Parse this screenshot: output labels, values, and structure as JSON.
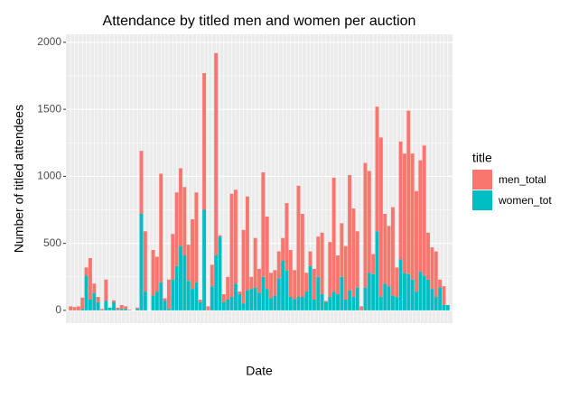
{
  "chart_data": {
    "type": "bar",
    "stacked": true,
    "title": "Attendance by titled men and women per auction",
    "x_label": "Date",
    "y_label": "Number of titled attendees",
    "legend_title": "title",
    "legend_position": "right",
    "categories": [
      null,
      null,
      null,
      null,
      null,
      null,
      null,
      null,
      null,
      null,
      null,
      null,
      null,
      null,
      null,
      null,
      null,
      null,
      null,
      null,
      null,
      null,
      null,
      null,
      null,
      null,
      null,
      null,
      null,
      null,
      null,
      null,
      null,
      null,
      null,
      null,
      null,
      null,
      null,
      null,
      null,
      null,
      null,
      null,
      null,
      null,
      null,
      null,
      null,
      null,
      null,
      null,
      null,
      null,
      null,
      null,
      null,
      null,
      null,
      null,
      null,
      null,
      null,
      null,
      null,
      null,
      null,
      null,
      null,
      null,
      null,
      null,
      null,
      null,
      null,
      null,
      null,
      null,
      null,
      null,
      null,
      null,
      null,
      null,
      null,
      null,
      null,
      null,
      null,
      null,
      null,
      null,
      null,
      null,
      null,
      null,
      null
    ],
    "series": [
      {
        "name": "men_total",
        "color": "#F8766D",
        "values": [
          30,
          25,
          30,
          85,
          60,
          310,
          70,
          40,
          10,
          160,
          0,
          15,
          15,
          30,
          20,
          5,
          0,
          10,
          470,
          450,
          0,
          340,
          260,
          810,
          20,
          220,
          340,
          550,
          580,
          510,
          270,
          520,
          670,
          20,
          1020,
          30,
          160,
          1510,
          10,
          60,
          170,
          770,
          700,
          20,
          550,
          700,
          90,
          370,
          180,
          780,
          540,
          190,
          190,
          200,
          170,
          500,
          350,
          220,
          830,
          620,
          140,
          110,
          230,
          300,
          460,
          10,
          410,
          850,
          290,
          400,
          400,
          860,
          660,
          420,
          30,
          930,
          760,
          150,
          930,
          1190,
          520,
          450,
          660,
          220,
          880,
          890,
          1220,
          940,
          750,
          830,
          970,
          350,
          310,
          340,
          60,
          140,
          0
        ]
      },
      {
        "name": "women_tot",
        "color": "#00BFC4",
        "values": [
          0,
          0,
          0,
          10,
          260,
          80,
          130,
          60,
          0,
          70,
          20,
          60,
          5,
          10,
          10,
          0,
          0,
          10,
          720,
          140,
          0,
          110,
          140,
          210,
          70,
          10,
          230,
          330,
          480,
          410,
          220,
          160,
          210,
          60,
          750,
          0,
          180,
          410,
          550,
          60,
          80,
          100,
          200,
          120,
          50,
          150,
          160,
          170,
          130,
          250,
          160,
          90,
          110,
          240,
          370,
          300,
          100,
          80,
          100,
          100,
          140,
          330,
          80,
          250,
          120,
          60,
          100,
          140,
          120,
          250,
          80,
          150,
          100,
          170,
          0,
          170,
          280,
          270,
          590,
          100,
          200,
          180,
          110,
          100,
          380,
          280,
          270,
          230,
          140,
          290,
          260,
          230,
          160,
          100,
          170,
          40,
          40
        ]
      }
    ],
    "ylim": [
      -95,
      2060
    ],
    "yticks": [
      0,
      500,
      1000,
      1500,
      2000
    ],
    "grid": true
  }
}
